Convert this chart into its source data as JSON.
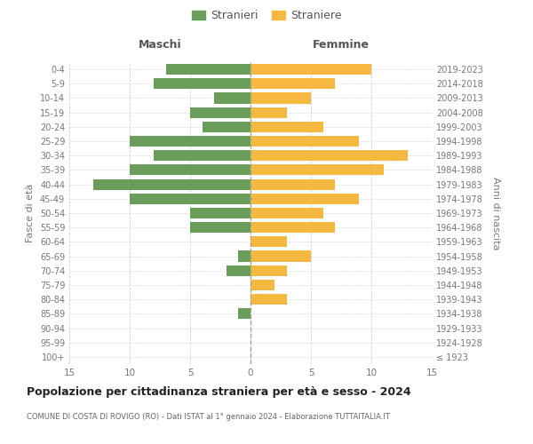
{
  "age_groups": [
    "100+",
    "95-99",
    "90-94",
    "85-89",
    "80-84",
    "75-79",
    "70-74",
    "65-69",
    "60-64",
    "55-59",
    "50-54",
    "45-49",
    "40-44",
    "35-39",
    "30-34",
    "25-29",
    "20-24",
    "15-19",
    "10-14",
    "5-9",
    "0-4"
  ],
  "birth_years": [
    "≤ 1923",
    "1924-1928",
    "1929-1933",
    "1934-1938",
    "1939-1943",
    "1944-1948",
    "1949-1953",
    "1954-1958",
    "1959-1963",
    "1964-1968",
    "1969-1973",
    "1974-1978",
    "1979-1983",
    "1984-1988",
    "1989-1993",
    "1994-1998",
    "1999-2003",
    "2004-2008",
    "2009-2013",
    "2014-2018",
    "2019-2023"
  ],
  "maschi": [
    0,
    0,
    0,
    1,
    0,
    0,
    2,
    1,
    0,
    5,
    5,
    10,
    13,
    10,
    8,
    10,
    4,
    5,
    3,
    8,
    7
  ],
  "femmine": [
    0,
    0,
    0,
    0,
    3,
    2,
    3,
    5,
    3,
    7,
    6,
    9,
    7,
    11,
    13,
    9,
    6,
    3,
    5,
    7,
    10
  ],
  "male_color": "#6a9d5a",
  "female_color": "#f5b942",
  "title": "Popolazione per cittadinanza straniera per età e sesso - 2024",
  "subtitle": "COMUNE DI COSTA DI ROVIGO (RO) - Dati ISTAT al 1° gennaio 2024 - Elaborazione TUTTAITALIA.IT",
  "xlabel_left": "Maschi",
  "xlabel_right": "Femmine",
  "ylabel_left": "Fasce di età",
  "ylabel_right": "Anni di nascita",
  "legend_male": "Stranieri",
  "legend_female": "Straniere",
  "xlim": 15,
  "background_color": "#ffffff",
  "grid_color": "#cccccc",
  "bar_height": 0.75
}
